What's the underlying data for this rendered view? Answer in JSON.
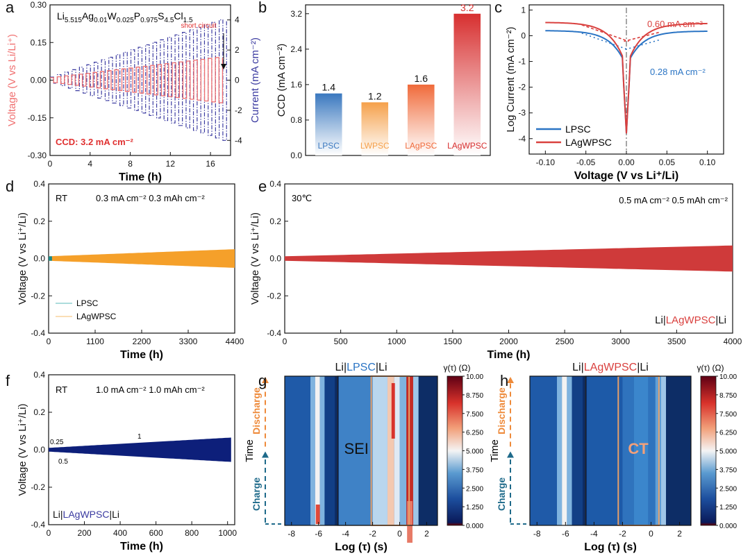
{
  "figure": {
    "panel_letters": [
      "a",
      "b",
      "c",
      "d",
      "e",
      "f",
      "g",
      "h"
    ]
  },
  "colors": {
    "lpsc": "#2a74c4",
    "lagwpsc": "#d9403e",
    "voltage_pink": "#f07070",
    "current_navy": "#3a3aa0",
    "orange": "#f5a02a",
    "crimson": "#cf3a3a",
    "navy": "#0d1f7a",
    "teal": "#1a8a8a"
  },
  "chart_data": [
    {
      "id": "a",
      "type": "line",
      "title": "Li5.515Ag0.01W0.025P0.975S4.5Cl1.5",
      "formula_parts": [
        {
          "t": "Li",
          "sub": false
        },
        {
          "t": "5.515",
          "sub": true
        },
        {
          "t": "Ag",
          "sub": false
        },
        {
          "t": "0.01",
          "sub": true
        },
        {
          "t": "W",
          "sub": false
        },
        {
          "t": "0.025",
          "sub": true
        },
        {
          "t": "P",
          "sub": false
        },
        {
          "t": "0.975",
          "sub": true
        },
        {
          "t": "S",
          "sub": false
        },
        {
          "t": "4.5",
          "sub": true
        },
        {
          "t": "Cl",
          "sub": false
        },
        {
          "t": "1.5",
          "sub": true
        }
      ],
      "xlabel": "Time (h)",
      "ylabel": "Voltage (V vs Li/Li⁺)",
      "y2label": "Current (mA cm⁻²)",
      "xlim": [
        0,
        18
      ],
      "ylim": [
        -0.3,
        0.3
      ],
      "y2lim": [
        -5,
        5
      ],
      "xticks": [
        "0",
        "4",
        "8",
        "12",
        "16"
      ],
      "yticks": [
        "-0.30",
        "-0.15",
        "0.00",
        "0.15",
        "0.30"
      ],
      "y2ticks": [
        "-4",
        "-2",
        "0",
        "2",
        "4"
      ],
      "annotation_short_circuit": "short circuit",
      "annotation_ccd": "CCD: 3.2 mA cm⁻²",
      "series": [
        {
          "name": "voltage",
          "x_end": 17.2,
          "amplitude_start": 0.01,
          "amplitude_end": 0.09,
          "cycles": 24
        },
        {
          "name": "current",
          "x_end": 17.6,
          "amplitude_start": 0.2,
          "amplitude_end": 4.0,
          "cycles": 24
        }
      ]
    },
    {
      "id": "b",
      "type": "bar",
      "ylabel": "CCD (mA cm⁻²)",
      "ylim": [
        0,
        3.4
      ],
      "yticks": [
        "0.0",
        "0.8",
        "1.6",
        "2.4",
        "3.2"
      ],
      "categories": [
        "LPSC",
        "LWPSC",
        "LAgPSC",
        "LAgWPSC"
      ],
      "values": [
        1.4,
        1.2,
        1.6,
        3.2
      ],
      "value_labels": [
        "1.4",
        "1.2",
        "1.6",
        "3.2"
      ],
      "bar_colors": [
        "#3a78bf",
        "#f5a04a",
        "#f06a3a",
        "#d72f2f"
      ]
    },
    {
      "id": "c",
      "type": "line",
      "xlabel": "Voltage (V vs Li⁺/Li)",
      "ylabel": "Log Current (mA cm⁻²)",
      "xlim": [
        -0.12,
        0.12
      ],
      "ylim": [
        -4.6,
        1.2
      ],
      "xticks": [
        "-0.10",
        "-0.05",
        "0.00",
        "0.05",
        "0.10"
      ],
      "yticks": [
        "-4",
        "-3",
        "-2",
        "-1",
        "0",
        "1"
      ],
      "legend": [
        "LPSC",
        "LAgWPSC"
      ],
      "annotation_lag": "0.60 mA cm⁻²",
      "annotation_lpsc": "0.28 mA cm⁻²",
      "series": [
        {
          "name": "LPSC",
          "i0_log": -0.55,
          "plateau_left": 0.2,
          "plateau_right": 0.18
        },
        {
          "name": "LAgWPSC",
          "i0_log": -0.22,
          "plateau_left": 0.52,
          "plateau_right": 0.48
        }
      ]
    },
    {
      "id": "d",
      "type": "area",
      "label_condition": "RT",
      "label_rate": "0.3 mA cm⁻² 0.3 mAh cm⁻²",
      "xlabel": "Time (h)",
      "ylabel": "Voltage (V vs Li⁺/Li)",
      "xlim": [
        0,
        4400
      ],
      "ylim": [
        -0.4,
        0.4
      ],
      "xticks": [
        "0",
        "1100",
        "2200",
        "3300",
        "4400"
      ],
      "yticks": [
        "-0.4",
        "-0.2",
        "0.0",
        "0.2",
        "0.4"
      ],
      "legend": [
        "LPSC",
        "LAgWPSC"
      ],
      "series": [
        {
          "name": "LPSC",
          "x_end": 80,
          "amp_start": 0.012,
          "amp_end": 0.012
        },
        {
          "name": "LAgWPSC",
          "x_end": 4400,
          "amp_start": 0.012,
          "amp_end": 0.05
        }
      ]
    },
    {
      "id": "e",
      "type": "area",
      "label_condition": "30℃",
      "label_rate": "0.5 mA cm⁻² 0.5 mAh cm⁻²",
      "cell_prefix": "Li|",
      "cell_middle": "LAgWPSC",
      "cell_suffix": "|Li",
      "xlabel": "Time (h)",
      "ylabel": "Voltage (V vs Li⁺/Li)",
      "xlim": [
        0,
        4000
      ],
      "ylim": [
        -0.4,
        0.4
      ],
      "xticks": [
        "0",
        "500",
        "1000",
        "1500",
        "2000",
        "2500",
        "3000",
        "3500",
        "4000"
      ],
      "yticks": [
        "-0.4",
        "-0.2",
        "0.0",
        "0.2",
        "0.4"
      ],
      "series": [
        {
          "name": "LAgWPSC",
          "x_end": 4000,
          "amp_start": 0.012,
          "amp_end": 0.07
        }
      ]
    },
    {
      "id": "f",
      "type": "area",
      "label_condition": "RT",
      "label_rate": "1.0 mA cm⁻² 1.0 mAh cm⁻²",
      "cell_prefix": "Li|",
      "cell_middle": "LAgWPSC",
      "cell_suffix": "|Li",
      "annotations": [
        "0.25",
        "0.5",
        "1"
      ],
      "xlabel": "Time (h)",
      "ylabel": "Voltage (V vs Li⁺/Li)",
      "xlim": [
        0,
        1040
      ],
      "ylim": [
        -0.4,
        0.4
      ],
      "xticks": [
        "0",
        "200",
        "400",
        "600",
        "800",
        "1000"
      ],
      "yticks": [
        "-0.4",
        "-0.2",
        "0.0",
        "0.2",
        "0.4"
      ],
      "series": [
        {
          "name": "LAgWPSC",
          "x_end": 1020,
          "amp_start": 0.01,
          "amp_end": 0.065
        }
      ]
    },
    {
      "id": "g",
      "type": "heatmap",
      "title_prefix": "Li|",
      "title_middle": "LPSC",
      "title_suffix": "|Li",
      "xlabel": "Log (τ) (s)",
      "ylabel": "Time",
      "xlim": [
        -8.5,
        2.8
      ],
      "xticks": [
        "-8",
        "-6",
        "-4",
        "-2",
        "0",
        "2"
      ],
      "colorbar_label": "γ(τ) (Ω)",
      "colorbar_ticks": [
        "10.00",
        "8.750",
        "7.500",
        "6.250",
        "5.000",
        "3.750",
        "2.500",
        "1.250",
        "0.000"
      ],
      "region_label": "SEI",
      "arrow_discharge": "Discharge",
      "arrow_charge": "Charge"
    },
    {
      "id": "h",
      "type": "heatmap",
      "title_prefix": "Li|",
      "title_middle": "LAgWPSC",
      "title_suffix": "|Li",
      "xlabel": "Log (τ) (s)",
      "ylabel": "Time",
      "xlim": [
        -8.5,
        2.8
      ],
      "xticks": [
        "-8",
        "-6",
        "-4",
        "-2",
        "0",
        "2"
      ],
      "colorbar_label": "γ(τ) (Ω)",
      "colorbar_ticks": [
        "10.00",
        "8.750",
        "7.500",
        "6.250",
        "5.000",
        "3.750",
        "2.500",
        "1.250",
        "0.000"
      ],
      "region_label": "CT",
      "arrow_discharge": "Discharge",
      "arrow_charge": "Charge"
    }
  ]
}
